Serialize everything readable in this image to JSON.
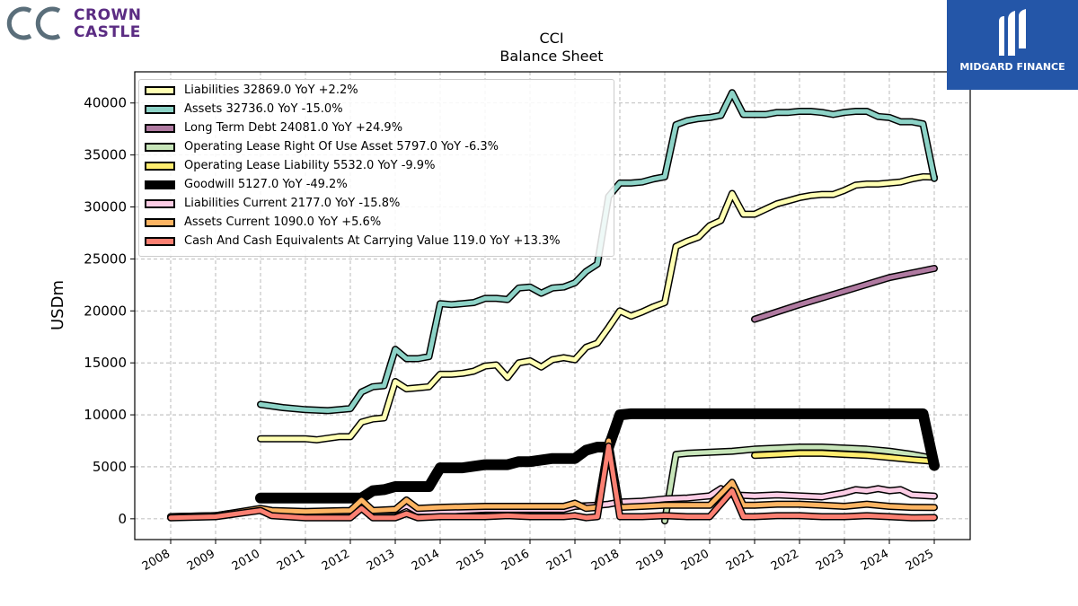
{
  "logos": {
    "left_brand_line1": "CROWN",
    "left_brand_line2": "CASTLE",
    "right_brand": "MIDGARD FINANCE"
  },
  "chart_data": {
    "type": "line",
    "title": "CCI",
    "subtitle": "Balance  Sheet",
    "ylabel": "USDm",
    "xlabel": "",
    "ylim": [
      -2000,
      43000
    ],
    "xlim": [
      2007.2,
      2025.8
    ],
    "yticks": [
      0,
      5000,
      10000,
      15000,
      20000,
      25000,
      30000,
      35000,
      40000
    ],
    "xticks": [
      "2008",
      "2009",
      "2010",
      "2011",
      "2012",
      "2013",
      "2014",
      "2015",
      "2016",
      "2017",
      "2018",
      "2019",
      "2020",
      "2021",
      "2022",
      "2023",
      "2024",
      "2025"
    ],
    "grid": true,
    "legend_position": "top-left",
    "series": [
      {
        "name": "Liabilities",
        "legend": "Liabilities  32869.0 YoY +2.2%",
        "color": "#ffffb3",
        "width": 5,
        "points": [
          [
            2010,
            7700
          ],
          [
            2011,
            7700
          ],
          [
            2011.25,
            7600
          ],
          [
            2011.75,
            7900
          ],
          [
            2012,
            7900
          ],
          [
            2012.25,
            9300
          ],
          [
            2012.5,
            9600
          ],
          [
            2012.75,
            9700
          ],
          [
            2013,
            13200
          ],
          [
            2013.25,
            12500
          ],
          [
            2013.5,
            12600
          ],
          [
            2013.75,
            12700
          ],
          [
            2014,
            13900
          ],
          [
            2014.25,
            13900
          ],
          [
            2014.5,
            14000
          ],
          [
            2014.75,
            14200
          ],
          [
            2015,
            14700
          ],
          [
            2015.25,
            14800
          ],
          [
            2015.5,
            13600
          ],
          [
            2015.75,
            15000
          ],
          [
            2016,
            15200
          ],
          [
            2016.25,
            14600
          ],
          [
            2016.5,
            15300
          ],
          [
            2016.75,
            15500
          ],
          [
            2017,
            15300
          ],
          [
            2017.25,
            16500
          ],
          [
            2017.5,
            16900
          ],
          [
            2017.75,
            18400
          ],
          [
            2018,
            20000
          ],
          [
            2018.25,
            19500
          ],
          [
            2018.5,
            19900
          ],
          [
            2018.75,
            20400
          ],
          [
            2019,
            20800
          ],
          [
            2019.25,
            26200
          ],
          [
            2019.5,
            26700
          ],
          [
            2019.75,
            27100
          ],
          [
            2020,
            28200
          ],
          [
            2020.25,
            28700
          ],
          [
            2020.5,
            31300
          ],
          [
            2020.75,
            29300
          ],
          [
            2021,
            29300
          ],
          [
            2021.25,
            29800
          ],
          [
            2021.5,
            30300
          ],
          [
            2021.75,
            30600
          ],
          [
            2022,
            30900
          ],
          [
            2022.25,
            31100
          ],
          [
            2022.5,
            31200
          ],
          [
            2022.75,
            31200
          ],
          [
            2023,
            31600
          ],
          [
            2023.25,
            32100
          ],
          [
            2023.5,
            32200
          ],
          [
            2023.75,
            32200
          ],
          [
            2024,
            32300
          ],
          [
            2024.25,
            32400
          ],
          [
            2024.5,
            32700
          ],
          [
            2024.75,
            32900
          ],
          [
            2025,
            32869
          ]
        ]
      },
      {
        "name": "Assets",
        "legend": "Assets  32736.0 YoY -15.0%",
        "color": "#8dd3c7",
        "width": 5,
        "points": [
          [
            2010,
            11000
          ],
          [
            2010.5,
            10700
          ],
          [
            2011,
            10500
          ],
          [
            2011.5,
            10400
          ],
          [
            2012,
            10600
          ],
          [
            2012.25,
            12200
          ],
          [
            2012.5,
            12700
          ],
          [
            2012.75,
            12800
          ],
          [
            2013,
            16300
          ],
          [
            2013.25,
            15400
          ],
          [
            2013.5,
            15400
          ],
          [
            2013.75,
            15600
          ],
          [
            2014,
            20700
          ],
          [
            2014.25,
            20600
          ],
          [
            2014.5,
            20700
          ],
          [
            2014.75,
            20800
          ],
          [
            2015,
            21200
          ],
          [
            2015.25,
            21200
          ],
          [
            2015.5,
            21100
          ],
          [
            2015.75,
            22200
          ],
          [
            2016,
            22300
          ],
          [
            2016.25,
            21700
          ],
          [
            2016.5,
            22200
          ],
          [
            2016.75,
            22300
          ],
          [
            2017,
            22700
          ],
          [
            2017.25,
            23800
          ],
          [
            2017.5,
            24500
          ],
          [
            2017.75,
            31000
          ],
          [
            2018,
            32300
          ],
          [
            2018.25,
            32300
          ],
          [
            2018.5,
            32400
          ],
          [
            2018.75,
            32700
          ],
          [
            2019,
            32900
          ],
          [
            2019.25,
            37900
          ],
          [
            2019.5,
            38300
          ],
          [
            2019.75,
            38500
          ],
          [
            2020,
            38600
          ],
          [
            2020.25,
            38800
          ],
          [
            2020.5,
            41000
          ],
          [
            2020.75,
            38900
          ],
          [
            2021,
            38900
          ],
          [
            2021.25,
            38900
          ],
          [
            2021.5,
            39100
          ],
          [
            2021.75,
            39100
          ],
          [
            2022,
            39200
          ],
          [
            2022.25,
            39200
          ],
          [
            2022.5,
            39100
          ],
          [
            2022.75,
            38900
          ],
          [
            2023,
            39100
          ],
          [
            2023.25,
            39200
          ],
          [
            2023.5,
            39200
          ],
          [
            2023.75,
            38700
          ],
          [
            2024,
            38600
          ],
          [
            2024.25,
            38200
          ],
          [
            2024.5,
            38200
          ],
          [
            2024.75,
            38000
          ],
          [
            2025,
            32736
          ]
        ]
      },
      {
        "name": "Long Term Debt",
        "legend": "Long Term Debt  24081.0 YoY +24.9%",
        "color": "#b07aa1",
        "width": 5,
        "points": [
          [
            2021,
            19200
          ],
          [
            2022,
            20600
          ],
          [
            2023,
            21900
          ],
          [
            2024,
            23200
          ],
          [
            2025,
            24081
          ]
        ]
      },
      {
        "name": "Operating Lease Right Of Use Asset",
        "legend": "Operating Lease Right Of Use Asset  5797.0 YoY -6.3%",
        "color": "#c7e5b9",
        "width": 5,
        "points": [
          [
            2019,
            -200
          ],
          [
            2019.25,
            6200
          ],
          [
            2019.5,
            6300
          ],
          [
            2020,
            6400
          ],
          [
            2020.5,
            6500
          ],
          [
            2021,
            6700
          ],
          [
            2021.5,
            6800
          ],
          [
            2022,
            6900
          ],
          [
            2022.5,
            6900
          ],
          [
            2023,
            6800
          ],
          [
            2023.5,
            6700
          ],
          [
            2024,
            6500
          ],
          [
            2024.5,
            6200
          ],
          [
            2025,
            5797
          ]
        ]
      },
      {
        "name": "Operating Lease Liability",
        "legend": "Operating Lease Liability  5532.0 YoY -9.9%",
        "color": "#ffed6f",
        "width": 5,
        "points": [
          [
            2021,
            6100
          ],
          [
            2021.5,
            6200
          ],
          [
            2022,
            6300
          ],
          [
            2022.5,
            6300
          ],
          [
            2023,
            6200
          ],
          [
            2023.5,
            6100
          ],
          [
            2024,
            5900
          ],
          [
            2024.5,
            5700
          ],
          [
            2025,
            5532
          ]
        ]
      },
      {
        "name": "Goodwill",
        "legend": "Goodwill  5127.0 YoY -49.2%",
        "color": "#000000",
        "width": 9,
        "points": [
          [
            2010,
            2000
          ],
          [
            2012.25,
            2000
          ],
          [
            2012.5,
            2700
          ],
          [
            2012.75,
            2800
          ],
          [
            2013,
            3100
          ],
          [
            2013.75,
            3100
          ],
          [
            2014,
            4900
          ],
          [
            2014.5,
            4900
          ],
          [
            2015,
            5200
          ],
          [
            2015.5,
            5200
          ],
          [
            2015.75,
            5500
          ],
          [
            2016,
            5500
          ],
          [
            2016.5,
            5800
          ],
          [
            2017,
            5800
          ],
          [
            2017.25,
            6600
          ],
          [
            2017.5,
            6900
          ],
          [
            2017.75,
            6900
          ],
          [
            2018,
            10000
          ],
          [
            2018.25,
            10100
          ],
          [
            2024.75,
            10100
          ],
          [
            2025,
            5127
          ]
        ]
      },
      {
        "name": "Liabilities Current",
        "legend": "Liabilities Current  2177.0 YoY -15.8%",
        "color": "#fccde5",
        "width": 5,
        "points": [
          [
            2008,
            200
          ],
          [
            2009,
            300
          ],
          [
            2010,
            900
          ],
          [
            2010.25,
            600
          ],
          [
            2011,
            400
          ],
          [
            2012,
            400
          ],
          [
            2012.25,
            1200
          ],
          [
            2012.5,
            800
          ],
          [
            2013,
            800
          ],
          [
            2013.25,
            1300
          ],
          [
            2013.5,
            700
          ],
          [
            2014,
            700
          ],
          [
            2015,
            900
          ],
          [
            2016,
            900
          ],
          [
            2016.75,
            900
          ],
          [
            2017,
            1200
          ],
          [
            2017.5,
            1300
          ],
          [
            2017.75,
            1400
          ],
          [
            2018,
            1600
          ],
          [
            2018.5,
            1700
          ],
          [
            2019,
            1900
          ],
          [
            2019.5,
            2000
          ],
          [
            2020,
            2200
          ],
          [
            2020.25,
            2900
          ],
          [
            2020.5,
            2300
          ],
          [
            2021,
            2200
          ],
          [
            2021.5,
            2300
          ],
          [
            2022,
            2200
          ],
          [
            2022.5,
            2100
          ],
          [
            2022.75,
            2300
          ],
          [
            2023,
            2500
          ],
          [
            2023.25,
            2800
          ],
          [
            2023.5,
            2700
          ],
          [
            2023.75,
            2900
          ],
          [
            2024,
            2700
          ],
          [
            2024.25,
            2800
          ],
          [
            2024.5,
            2300
          ],
          [
            2025,
            2177
          ]
        ]
      },
      {
        "name": "Assets Current",
        "legend": "Assets Current  1090.0 YoY +5.6%",
        "color": "#fdb462",
        "width": 5,
        "points": [
          [
            2008,
            200
          ],
          [
            2009,
            300
          ],
          [
            2010,
            1000
          ],
          [
            2010.25,
            800
          ],
          [
            2011,
            700
          ],
          [
            2012,
            800
          ],
          [
            2012.25,
            1800
          ],
          [
            2012.5,
            800
          ],
          [
            2013,
            900
          ],
          [
            2013.25,
            1800
          ],
          [
            2013.5,
            1000
          ],
          [
            2014,
            1100
          ],
          [
            2015,
            1200
          ],
          [
            2016,
            1200
          ],
          [
            2016.75,
            1200
          ],
          [
            2017,
            1500
          ],
          [
            2017.25,
            1000
          ],
          [
            2017.5,
            1100
          ],
          [
            2017.75,
            7500
          ],
          [
            2018,
            1100
          ],
          [
            2018.5,
            1200
          ],
          [
            2019,
            1300
          ],
          [
            2019.5,
            1300
          ],
          [
            2020,
            1300
          ],
          [
            2020.5,
            3500
          ],
          [
            2020.75,
            1300
          ],
          [
            2021,
            1300
          ],
          [
            2021.5,
            1400
          ],
          [
            2022,
            1400
          ],
          [
            2022.5,
            1300
          ],
          [
            2023,
            1200
          ],
          [
            2023.5,
            1400
          ],
          [
            2024,
            1200
          ],
          [
            2024.5,
            1100
          ],
          [
            2025,
            1090
          ]
        ]
      },
      {
        "name": "Cash And Cash Equivalents At Carrying Value",
        "legend": "Cash And Cash Equivalents At Carrying Value  119.0 YoY +13.3%",
        "color": "#fb8072",
        "width": 5,
        "points": [
          [
            2008,
            100
          ],
          [
            2009,
            200
          ],
          [
            2010,
            800
          ],
          [
            2010.25,
            300
          ],
          [
            2011,
            100
          ],
          [
            2012,
            100
          ],
          [
            2012.25,
            1000
          ],
          [
            2012.5,
            100
          ],
          [
            2013,
            100
          ],
          [
            2013.25,
            500
          ],
          [
            2013.5,
            100
          ],
          [
            2014,
            200
          ],
          [
            2015,
            200
          ],
          [
            2015.5,
            300
          ],
          [
            2016,
            200
          ],
          [
            2016.75,
            200
          ],
          [
            2017,
            300
          ],
          [
            2017.25,
            100
          ],
          [
            2017.5,
            200
          ],
          [
            2017.75,
            7000
          ],
          [
            2018,
            200
          ],
          [
            2018.5,
            200
          ],
          [
            2019,
            300
          ],
          [
            2019.5,
            200
          ],
          [
            2020,
            200
          ],
          [
            2020.5,
            2700
          ],
          [
            2020.75,
            200
          ],
          [
            2021,
            200
          ],
          [
            2021.5,
            300
          ],
          [
            2022,
            300
          ],
          [
            2022.5,
            200
          ],
          [
            2023,
            200
          ],
          [
            2023.5,
            300
          ],
          [
            2024,
            200
          ],
          [
            2024.5,
            100
          ],
          [
            2025,
            119
          ]
        ]
      }
    ]
  }
}
